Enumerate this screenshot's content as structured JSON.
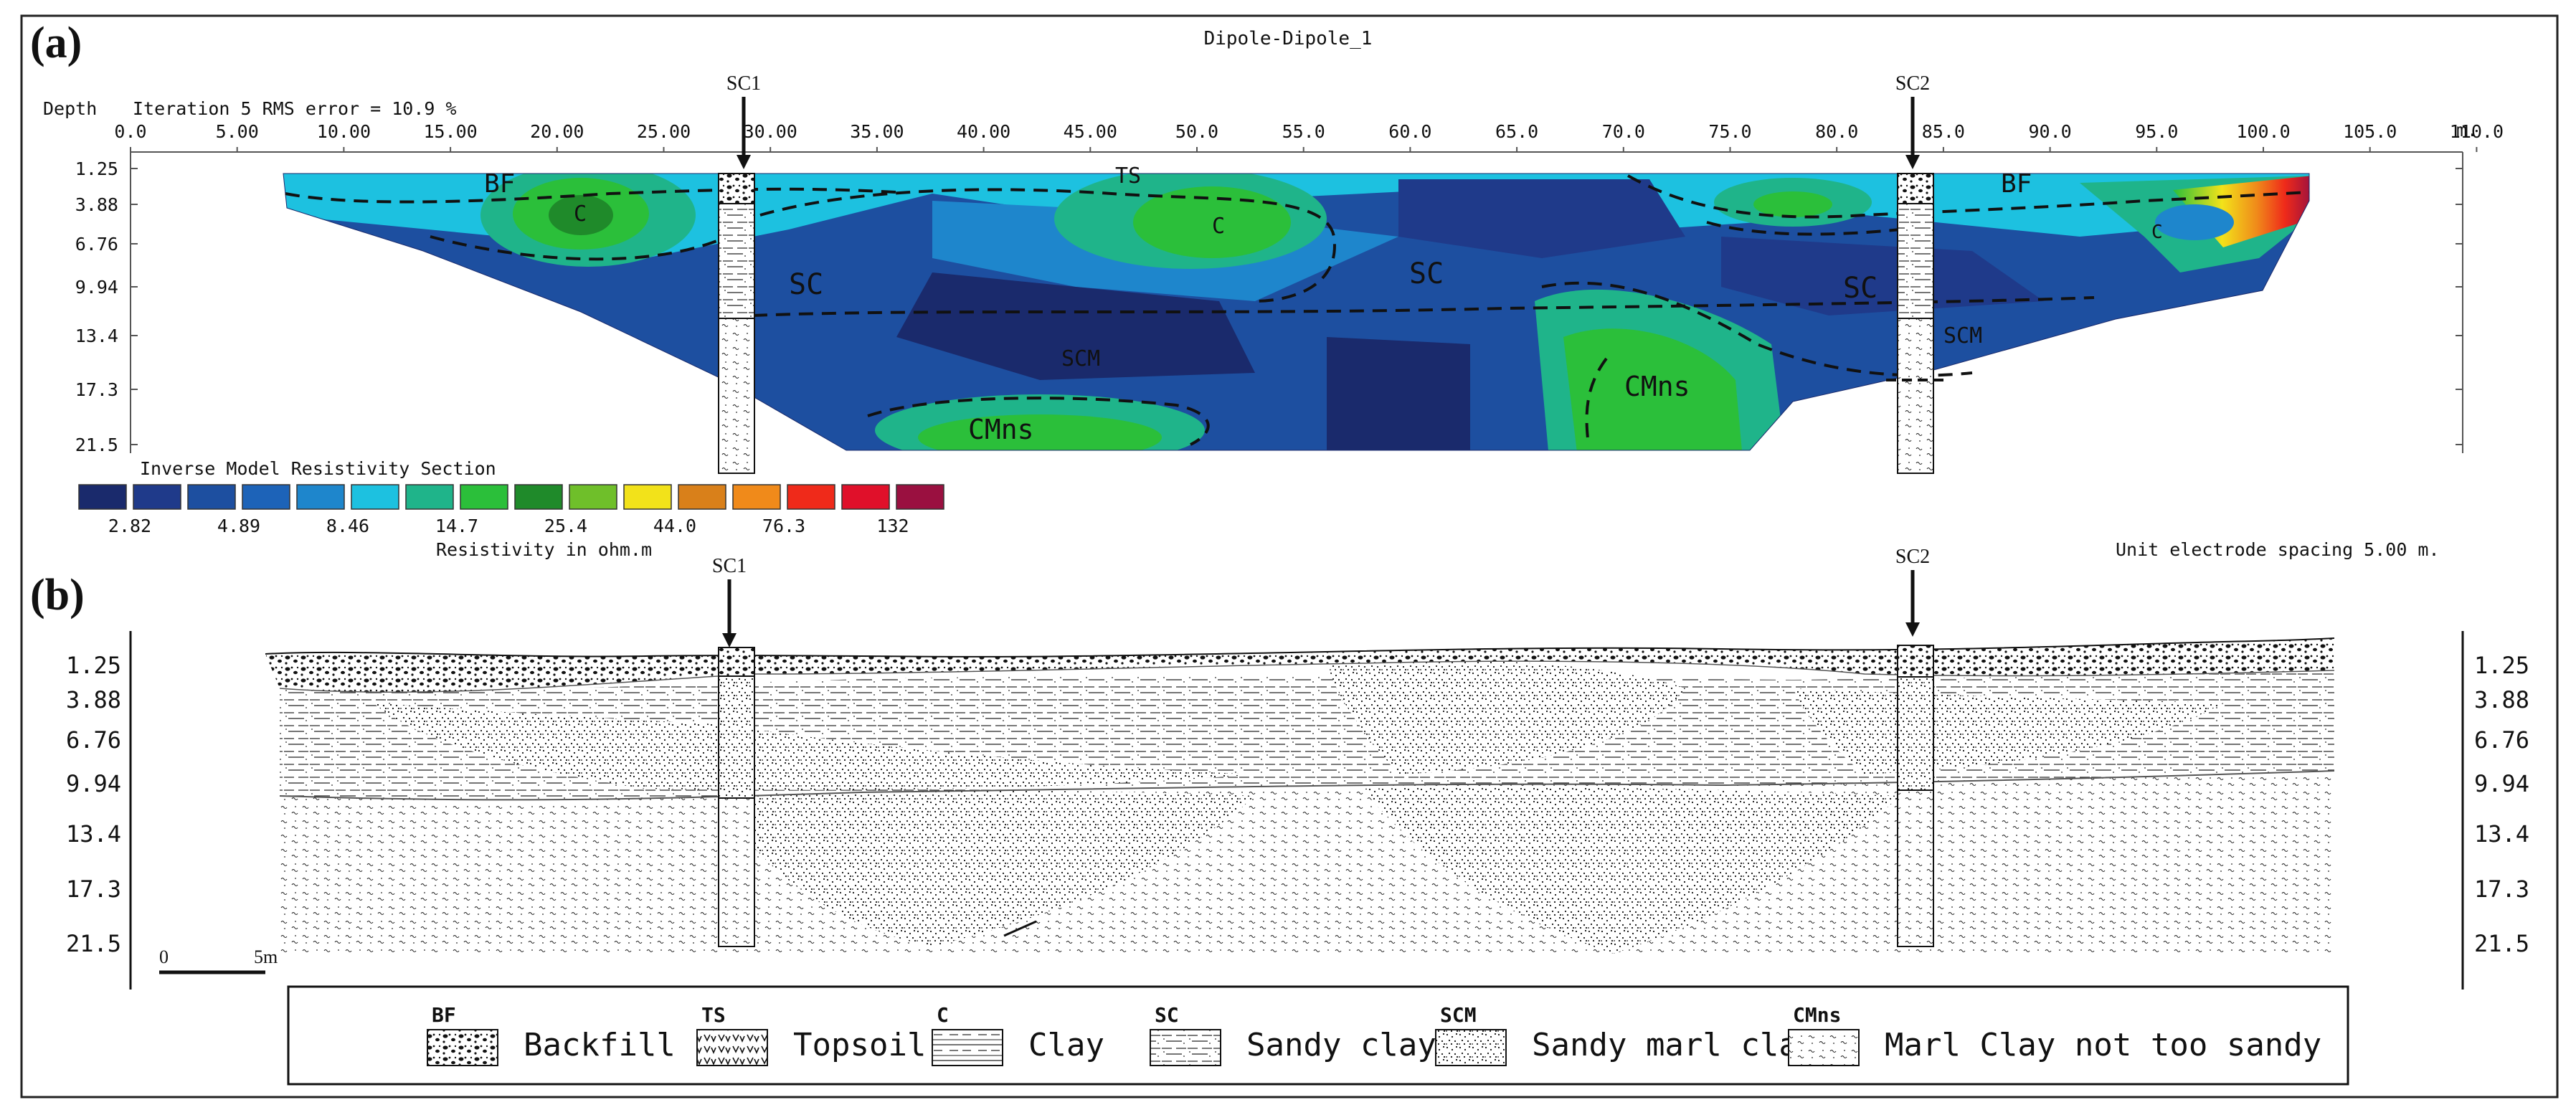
{
  "panel_a": {
    "label": "(a)",
    "title": "Dipole-Dipole_1",
    "depth_label": "Depth",
    "iteration_text": "Iteration 5 RMS error = 10.9 %",
    "x_unit": "m.",
    "x_ticks": [
      "0.0",
      "5.00",
      "10.00",
      "15.00",
      "20.00",
      "25.00",
      "30.00",
      "35.00",
      "40.00",
      "45.00",
      "50.0",
      "55.0",
      "60.0",
      "65.0",
      "70.0",
      "75.0",
      "80.0",
      "85.0",
      "90.0",
      "95.0",
      "100.0",
      "105.0",
      "110.0"
    ],
    "depth_ticks": [
      "1.25",
      "3.88",
      "6.76",
      "9.94",
      "13.4",
      "17.3",
      "21.5"
    ],
    "section_title": "Inverse Model Resistivity Section",
    "scale_labels": [
      "2.82",
      "4.89",
      "8.46",
      "14.7",
      "25.4",
      "44.0",
      "76.3",
      "132"
    ],
    "scale_caption": "Resistivity in ohm.m",
    "spacing_note": "Unit electrode spacing 5.00 m.",
    "scale_colors": [
      "#1a2a6c",
      "#1f3a8a",
      "#1d4fa0",
      "#1d63b8",
      "#1e86cc",
      "#1dc1e0",
      "#1fb48a",
      "#2bbf3a",
      "#1f8a2a",
      "#6fbf2a",
      "#f2e21a",
      "#d9801a",
      "#f08a1a",
      "#ef2a1a",
      "#e0102a",
      "#9a1040",
      "#6a2060"
    ],
    "zone_labels": [
      "BF",
      "C",
      "TS",
      "C",
      "SC",
      "SC",
      "SC",
      "SCM",
      "CMns",
      "CMns",
      "SCM",
      "BF",
      "C"
    ]
  },
  "panel_b": {
    "label": "(b)",
    "depth_ticks": [
      "1.25",
      "3.88",
      "6.76",
      "9.94",
      "13.4",
      "17.3",
      "21.5"
    ],
    "scalebar_start": "0",
    "scalebar_end": "5m"
  },
  "boreholes": [
    "SC1",
    "SC2"
  ],
  "legend": [
    {
      "code": "BF",
      "label": "Backfill"
    },
    {
      "code": "TS",
      "label": "Topsoil"
    },
    {
      "code": "C",
      "label": "Clay"
    },
    {
      "code": "SC",
      "label": "Sandy clay"
    },
    {
      "code": "SCM",
      "label": "Sandy marl clay"
    },
    {
      "code": "CMns",
      "label": "Marl Clay not too sandy"
    }
  ]
}
